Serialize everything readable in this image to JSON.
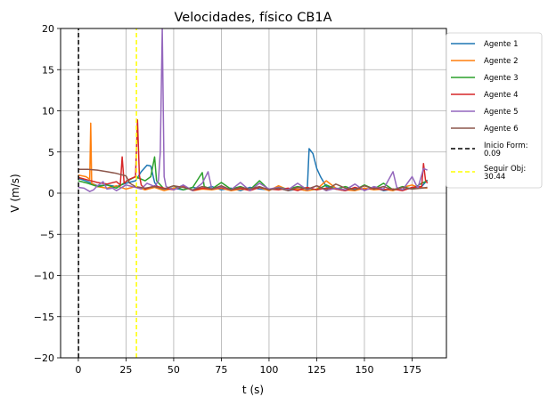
{
  "chart_data": {
    "type": "line",
    "title": "Velocidades, físico CB1A",
    "xlabel": "t (s)",
    "ylabel": "V (m/s)",
    "xlim": [
      -9.3,
      193
    ],
    "ylim": [
      -20,
      20
    ],
    "xticks": [
      0,
      25,
      50,
      75,
      100,
      125,
      150,
      175
    ],
    "yticks": [
      -20,
      -15,
      -10,
      -5,
      0,
      5,
      10,
      15,
      20
    ],
    "xtick_labels": [
      "0",
      "25",
      "50",
      "75",
      "100",
      "125",
      "150",
      "175"
    ],
    "ytick_labels": [
      "−20",
      "−15",
      "−10",
      "−5",
      "0",
      "5",
      "10",
      "15",
      "20"
    ],
    "grid": true,
    "legend_position": "outside-top-right",
    "series": [
      {
        "name": "Agente 1",
        "color": "#1f77b4",
        "points": [
          [
            0,
            1.8
          ],
          [
            5,
            1.4
          ],
          [
            10,
            0.9
          ],
          [
            15,
            1.0
          ],
          [
            20,
            0.8
          ],
          [
            25,
            1.2
          ],
          [
            30,
            1.5
          ],
          [
            33,
            2.6
          ],
          [
            36,
            3.4
          ],
          [
            38,
            3.3
          ],
          [
            40,
            1.3
          ],
          [
            42,
            0.6
          ],
          [
            45,
            0.5
          ],
          [
            50,
            0.6
          ],
          [
            55,
            0.4
          ],
          [
            60,
            0.7
          ],
          [
            65,
            0.5
          ],
          [
            70,
            0.8
          ],
          [
            75,
            0.4
          ],
          [
            80,
            0.6
          ],
          [
            85,
            0.3
          ],
          [
            90,
            0.7
          ],
          [
            95,
            0.5
          ],
          [
            100,
            0.4
          ],
          [
            105,
            0.6
          ],
          [
            110,
            0.3
          ],
          [
            115,
            0.5
          ],
          [
            120,
            0.3
          ],
          [
            121,
            5.4
          ],
          [
            123,
            4.8
          ],
          [
            125,
            3.0
          ],
          [
            127,
            2.0
          ],
          [
            130,
            0.8
          ],
          [
            135,
            0.5
          ],
          [
            140,
            0.3
          ],
          [
            145,
            0.6
          ],
          [
            150,
            0.4
          ],
          [
            155,
            0.7
          ],
          [
            160,
            0.3
          ],
          [
            165,
            0.5
          ],
          [
            170,
            0.4
          ],
          [
            175,
            0.6
          ],
          [
            180,
            0.8
          ],
          [
            183,
            1.6
          ]
        ]
      },
      {
        "name": "Agente 2",
        "color": "#ff7f0e",
        "points": [
          [
            0,
            2.2
          ],
          [
            4,
            2.0
          ],
          [
            6,
            1.7
          ],
          [
            6.5,
            8.5
          ],
          [
            7,
            1.2
          ],
          [
            10,
            0.8
          ],
          [
            15,
            0.6
          ],
          [
            20,
            0.9
          ],
          [
            25,
            0.5
          ],
          [
            30,
            0.8
          ],
          [
            35,
            0.4
          ],
          [
            40,
            0.7
          ],
          [
            45,
            0.3
          ],
          [
            50,
            0.6
          ],
          [
            55,
            0.9
          ],
          [
            60,
            0.3
          ],
          [
            65,
            0.5
          ],
          [
            70,
            0.4
          ],
          [
            75,
            0.6
          ],
          [
            80,
            0.3
          ],
          [
            85,
            0.5
          ],
          [
            90,
            0.4
          ],
          [
            95,
            0.7
          ],
          [
            100,
            0.3
          ],
          [
            105,
            0.9
          ],
          [
            110,
            0.4
          ],
          [
            115,
            0.5
          ],
          [
            120,
            0.3
          ],
          [
            125,
            0.5
          ],
          [
            130,
            1.5
          ],
          [
            135,
            0.6
          ],
          [
            140,
            0.4
          ],
          [
            145,
            0.3
          ],
          [
            150,
            0.6
          ],
          [
            155,
            0.4
          ],
          [
            160,
            0.5
          ],
          [
            165,
            0.3
          ],
          [
            170,
            0.7
          ],
          [
            175,
            1.0
          ],
          [
            178,
            0.7
          ],
          [
            183,
            0.6
          ]
        ]
      },
      {
        "name": "Agente 3",
        "color": "#2ca02c",
        "points": [
          [
            0,
            1.5
          ],
          [
            5,
            1.2
          ],
          [
            10,
            0.8
          ],
          [
            15,
            1.0
          ],
          [
            20,
            0.6
          ],
          [
            25,
            1.4
          ],
          [
            30,
            2.0
          ],
          [
            35,
            1.5
          ],
          [
            38,
            2.0
          ],
          [
            40,
            4.4
          ],
          [
            41,
            1.5
          ],
          [
            45,
            0.5
          ],
          [
            50,
            0.9
          ],
          [
            55,
            0.4
          ],
          [
            60,
            0.7
          ],
          [
            65,
            2.5
          ],
          [
            66,
            0.8
          ],
          [
            70,
            0.5
          ],
          [
            75,
            1.3
          ],
          [
            80,
            0.5
          ],
          [
            85,
            0.8
          ],
          [
            90,
            0.4
          ],
          [
            95,
            1.5
          ],
          [
            100,
            0.4
          ],
          [
            105,
            0.7
          ],
          [
            110,
            0.5
          ],
          [
            115,
            0.8
          ],
          [
            120,
            0.6
          ],
          [
            125,
            0.4
          ],
          [
            130,
            1.0
          ],
          [
            135,
            0.5
          ],
          [
            140,
            0.8
          ],
          [
            145,
            0.4
          ],
          [
            150,
            1.0
          ],
          [
            155,
            0.5
          ],
          [
            160,
            1.2
          ],
          [
            165,
            0.4
          ],
          [
            170,
            0.8
          ],
          [
            175,
            0.5
          ],
          [
            180,
            1.2
          ],
          [
            183,
            1.5
          ]
        ]
      },
      {
        "name": "Agente 4",
        "color": "#d62728",
        "points": [
          [
            0,
            1.9
          ],
          [
            5,
            1.6
          ],
          [
            10,
            1.3
          ],
          [
            15,
            1.1
          ],
          [
            20,
            1.4
          ],
          [
            22,
            1.0
          ],
          [
            23,
            4.4
          ],
          [
            24,
            1.2
          ],
          [
            26,
            1.6
          ],
          [
            28,
            1.8
          ],
          [
            30,
            2.0
          ],
          [
            31,
            8.9
          ],
          [
            32,
            2.2
          ],
          [
            33,
            1.0
          ],
          [
            35,
            0.5
          ],
          [
            40,
            0.9
          ],
          [
            45,
            0.6
          ],
          [
            50,
            0.4
          ],
          [
            55,
            0.9
          ],
          [
            60,
            0.3
          ],
          [
            65,
            0.6
          ],
          [
            70,
            0.5
          ],
          [
            75,
            0.7
          ],
          [
            80,
            0.4
          ],
          [
            85,
            0.6
          ],
          [
            90,
            0.3
          ],
          [
            95,
            0.7
          ],
          [
            100,
            0.5
          ],
          [
            105,
            0.4
          ],
          [
            110,
            0.6
          ],
          [
            115,
            0.3
          ],
          [
            120,
            0.7
          ],
          [
            125,
            0.4
          ],
          [
            130,
            0.6
          ],
          [
            135,
            0.5
          ],
          [
            140,
            0.3
          ],
          [
            145,
            0.7
          ],
          [
            150,
            0.4
          ],
          [
            155,
            0.6
          ],
          [
            160,
            0.4
          ],
          [
            165,
            0.5
          ],
          [
            170,
            0.3
          ],
          [
            175,
            0.7
          ],
          [
            180,
            0.8
          ],
          [
            181,
            3.6
          ],
          [
            182,
            1.6
          ],
          [
            183,
            1.2
          ]
        ]
      },
      {
        "name": "Agente 5",
        "color": "#9467bd",
        "points": [
          [
            0,
            0.7
          ],
          [
            3,
            0.6
          ],
          [
            6,
            0.2
          ],
          [
            8,
            0.4
          ],
          [
            10,
            0.9
          ],
          [
            13,
            1.4
          ],
          [
            15,
            0.5
          ],
          [
            18,
            0.6
          ],
          [
            20,
            0.3
          ],
          [
            25,
            1.0
          ],
          [
            30,
            0.7
          ],
          [
            33,
            0.5
          ],
          [
            36,
            1.2
          ],
          [
            40,
            0.8
          ],
          [
            42,
            1.5
          ],
          [
            43,
            5.0
          ],
          [
            44,
            20
          ],
          [
            45,
            2.0
          ],
          [
            46,
            0.8
          ],
          [
            50,
            0.4
          ],
          [
            55,
            1.0
          ],
          [
            60,
            0.3
          ],
          [
            65,
            1.2
          ],
          [
            68,
            2.6
          ],
          [
            70,
            0.5
          ],
          [
            75,
            0.8
          ],
          [
            80,
            0.4
          ],
          [
            85,
            1.3
          ],
          [
            90,
            0.3
          ],
          [
            95,
            1.2
          ],
          [
            100,
            0.5
          ],
          [
            105,
            0.7
          ],
          [
            110,
            0.4
          ],
          [
            115,
            1.2
          ],
          [
            120,
            0.4
          ],
          [
            125,
            0.9
          ],
          [
            130,
            0.3
          ],
          [
            135,
            0.6
          ],
          [
            140,
            0.4
          ],
          [
            145,
            1.1
          ],
          [
            150,
            0.3
          ],
          [
            155,
            0.8
          ],
          [
            160,
            0.5
          ],
          [
            165,
            2.6
          ],
          [
            167,
            0.7
          ],
          [
            170,
            0.4
          ],
          [
            175,
            2.0
          ],
          [
            178,
            0.6
          ],
          [
            181,
            3.0
          ],
          [
            183,
            2.8
          ]
        ]
      },
      {
        "name": "Agente 6",
        "color": "#8c564b",
        "points": [
          [
            0,
            2.9
          ],
          [
            5,
            2.9
          ],
          [
            10,
            2.8
          ],
          [
            15,
            2.6
          ],
          [
            20,
            2.4
          ],
          [
            25,
            2.1
          ],
          [
            27,
            1.2
          ],
          [
            30,
            0.8
          ],
          [
            35,
            0.6
          ],
          [
            40,
            0.8
          ],
          [
            45,
            0.5
          ],
          [
            50,
            0.9
          ],
          [
            55,
            0.7
          ],
          [
            60,
            0.4
          ],
          [
            65,
            0.8
          ],
          [
            70,
            0.5
          ],
          [
            75,
            0.9
          ],
          [
            80,
            0.4
          ],
          [
            85,
            0.7
          ],
          [
            90,
            0.5
          ],
          [
            95,
            0.8
          ],
          [
            100,
            0.4
          ],
          [
            105,
            0.6
          ],
          [
            110,
            0.3
          ],
          [
            115,
            0.7
          ],
          [
            120,
            0.5
          ],
          [
            125,
            0.9
          ],
          [
            130,
            0.4
          ],
          [
            135,
            1.1
          ],
          [
            140,
            0.6
          ],
          [
            145,
            0.4
          ],
          [
            150,
            0.9
          ],
          [
            155,
            0.5
          ],
          [
            160,
            0.8
          ],
          [
            165,
            0.4
          ],
          [
            170,
            0.7
          ],
          [
            175,
            0.5
          ],
          [
            180,
            0.6
          ],
          [
            183,
            0.7
          ]
        ]
      },
      {
        "name": "Inicio Form:\n0.09",
        "color": "#000000",
        "style": "dashed",
        "points": [
          [
            0.09,
            -20
          ],
          [
            0.09,
            20
          ]
        ]
      },
      {
        "name": "Seguir Obj:\n30.44",
        "color": "#ffff00",
        "style": "dashed",
        "points": [
          [
            30.44,
            -20
          ],
          [
            30.44,
            20
          ]
        ]
      }
    ]
  }
}
